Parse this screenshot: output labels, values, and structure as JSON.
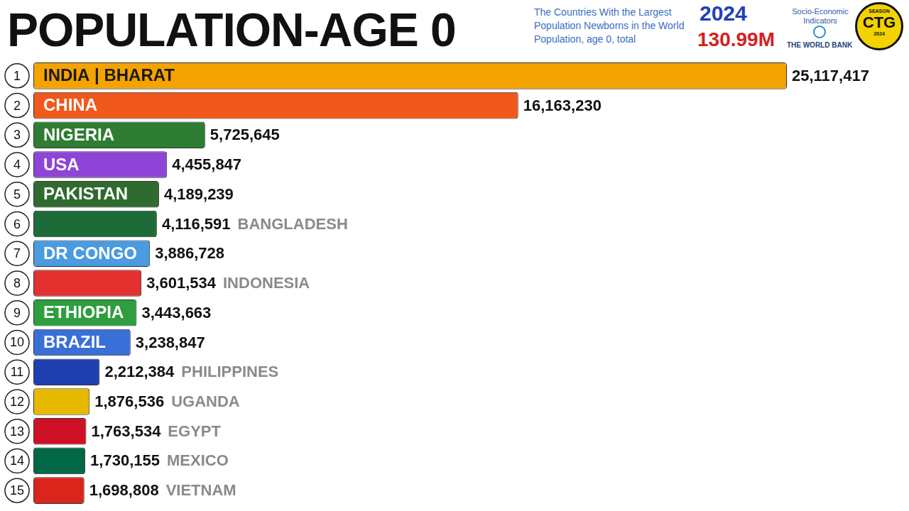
{
  "chart_data": {
    "type": "bar",
    "orientation": "horizontal",
    "title": "POPULATION-AGE 0",
    "subtitle": [
      "The Countries With the Largest",
      "Population Newborns in the World",
      "Population, age 0, total"
    ],
    "annotations": {
      "year": "2024",
      "total": "130.99M",
      "source_title": "Socio-Economic Indicators",
      "source": "THE WORLD BANK",
      "badge": "CTG",
      "badge_top": "SEASON",
      "badge_bottom": "2024"
    },
    "ranks": [
      1,
      2,
      3,
      4,
      5,
      6,
      7,
      8,
      9,
      10,
      11,
      12,
      13,
      14,
      15
    ],
    "categories": [
      "INDIA | BHARAT",
      "CHINA",
      "NIGERIA",
      "USA",
      "PAKISTAN",
      "BANGLADESH",
      "DR CONGO",
      "INDONESIA",
      "ETHIOPIA",
      "BRAZIL",
      "PHILIPPINES",
      "UGANDA",
      "EGYPT",
      "MEXICO",
      "VIETNAM"
    ],
    "values": [
      25117417,
      16163230,
      5725645,
      4455847,
      4189239,
      4116591,
      3886728,
      3601534,
      3443663,
      3238847,
      2212384,
      1876536,
      1763534,
      1730155,
      1698808
    ],
    "value_labels": [
      "25,117,417",
      "16,163,230",
      "5,725,645",
      "4,455,847",
      "4,189,239",
      "4,116,591",
      "3,886,728",
      "3,601,534",
      "3,443,663",
      "3,238,847",
      "2,212,384",
      "1,876,536",
      "1,763,534",
      "1,730,155",
      "1,698,808"
    ],
    "colors": [
      "#f5a300",
      "#f0581c",
      "#2e7d32",
      "#8e44d6",
      "#2f6b2f",
      "#1e6b3a",
      "#4a9be0",
      "#e53030",
      "#2e9e3e",
      "#3a6fd8",
      "#1f3fb0",
      "#e6b800",
      "#ce1126",
      "#006847",
      "#da251d"
    ],
    "xlim": [
      0,
      29000000
    ],
    "data_labels": true,
    "tick_labels": false,
    "grid": false
  }
}
